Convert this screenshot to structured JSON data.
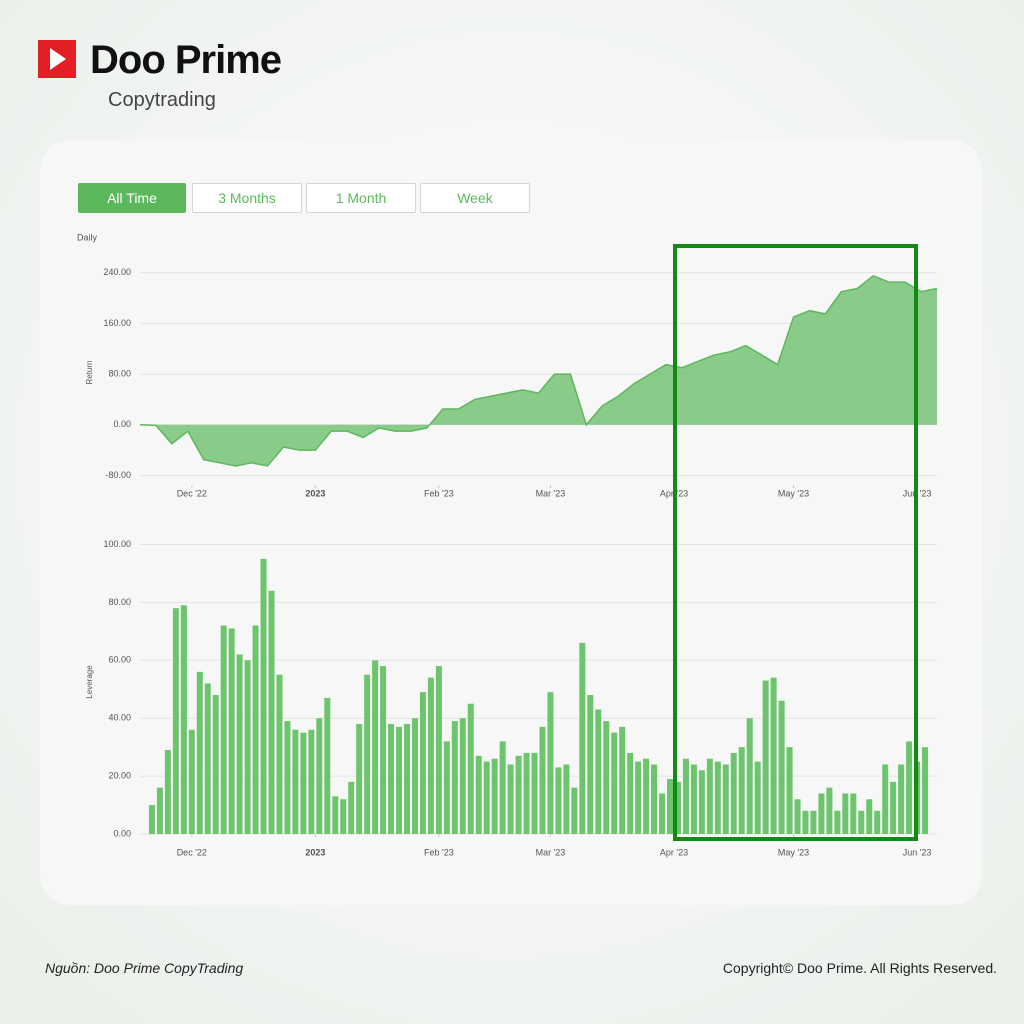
{
  "header": {
    "brand": "Doo Prime",
    "product": "Copytrading"
  },
  "tabs": [
    "All Time",
    "3 Months",
    "1 Month",
    "Week"
  ],
  "chart_data": [
    {
      "type": "area",
      "title": "Daily",
      "y_label": "Return",
      "color": "#5cb85c",
      "x": [
        0,
        4,
        8,
        12,
        16,
        20,
        24,
        28,
        32,
        36,
        40,
        44,
        48,
        52,
        56,
        60,
        64,
        68,
        72,
        76,
        80,
        84,
        88,
        92,
        96,
        100,
        104,
        108,
        112,
        116,
        120,
        124,
        128,
        132,
        136,
        140,
        144,
        148,
        152,
        156,
        160,
        164,
        168,
        172,
        176,
        180,
        184,
        188,
        192,
        196,
        200
      ],
      "values": [
        0,
        -1,
        -30,
        -10,
        -55,
        -60,
        -65,
        -60,
        -65,
        -35,
        -40,
        -40,
        -10,
        -10,
        -20,
        -5,
        -10,
        -10,
        -5,
        25,
        25,
        40,
        45,
        50,
        55,
        50,
        80,
        80,
        0,
        30,
        45,
        65,
        80,
        95,
        90,
        100,
        110,
        115,
        125,
        110,
        95,
        170,
        180,
        175,
        210,
        215,
        235,
        225,
        225,
        210,
        215
      ],
      "xlim": [
        0,
        200
      ],
      "xticks": [
        {
          "value": 13,
          "label": "Dec '22"
        },
        {
          "value": 44,
          "label": "2023"
        },
        {
          "value": 75,
          "label": "Feb '23"
        },
        {
          "value": 103,
          "label": "Mar '23"
        },
        {
          "value": 134,
          "label": "Apr '23"
        },
        {
          "value": 164,
          "label": "May '23"
        },
        {
          "value": 195,
          "label": "Jun '23"
        }
      ],
      "ylim": [
        -95,
        260
      ],
      "yticks": [
        {
          "value": -80,
          "label": "-80.00"
        },
        {
          "value": 0,
          "label": "0.00"
        },
        {
          "value": 80,
          "label": "80.00"
        },
        {
          "value": 160,
          "label": "160.00"
        },
        {
          "value": 240,
          "label": "240.00"
        }
      ],
      "grid": true
    },
    {
      "type": "bar",
      "y_label": "Leverage",
      "color": "#6cc46c",
      "x": [
        3,
        5,
        7,
        9,
        11,
        13,
        15,
        17,
        19,
        21,
        23,
        25,
        27,
        29,
        31,
        33,
        35,
        37,
        39,
        41,
        43,
        45,
        47,
        49,
        51,
        53,
        55,
        57,
        59,
        61,
        63,
        65,
        67,
        69,
        71,
        73,
        75,
        77,
        79,
        81,
        83,
        85,
        87,
        89,
        91,
        93,
        95,
        97,
        99,
        101,
        103,
        105,
        107,
        109,
        111,
        113,
        115,
        117,
        119,
        121,
        123,
        125,
        127,
        129,
        131,
        133,
        135,
        137,
        139,
        141,
        143,
        145,
        147,
        149,
        151,
        153,
        155,
        157,
        159,
        161,
        163,
        165,
        167,
        169,
        171,
        173,
        175,
        177,
        179,
        181,
        183,
        185,
        187,
        189,
        191,
        193,
        195,
        197
      ],
      "values": [
        10,
        16,
        29,
        78,
        79,
        36,
        56,
        52,
        48,
        72,
        71,
        62,
        60,
        72,
        95,
        84,
        55,
        39,
        36,
        35,
        36,
        40,
        47,
        13,
        12,
        18,
        38,
        55,
        60,
        58,
        38,
        37,
        38,
        40,
        49,
        54,
        58,
        32,
        39,
        40,
        45,
        27,
        25,
        26,
        32,
        24,
        27,
        28,
        28,
        37,
        49,
        23,
        24,
        16,
        66,
        48,
        43,
        39,
        35,
        37,
        28,
        25,
        26,
        24,
        14,
        19,
        18,
        26,
        24,
        22,
        26,
        25,
        24,
        28,
        30,
        40,
        25,
        53,
        54,
        46,
        30,
        12,
        8,
        8,
        14,
        16,
        8,
        14,
        14,
        8,
        12,
        8,
        24,
        18,
        24,
        32,
        25,
        30
      ],
      "xlim": [
        0,
        200
      ],
      "xticks": [
        {
          "value": 13,
          "label": "Dec '22"
        },
        {
          "value": 44,
          "label": "2023"
        },
        {
          "value": 75,
          "label": "Feb '23"
        },
        {
          "value": 103,
          "label": "Mar '23"
        },
        {
          "value": 134,
          "label": "Apr '23"
        },
        {
          "value": 164,
          "label": "May '23"
        },
        {
          "value": 195,
          "label": "Jun '23"
        }
      ],
      "ylim": [
        0,
        105
      ],
      "yticks": [
        {
          "value": 0,
          "label": "0.00"
        },
        {
          "value": 20,
          "label": "20.00"
        },
        {
          "value": 40,
          "label": "40.00"
        },
        {
          "value": 60,
          "label": "60.00"
        },
        {
          "value": 80,
          "label": "80.00"
        },
        {
          "value": 100,
          "label": "100.00"
        }
      ],
      "grid": true
    }
  ],
  "footer": {
    "source": "Nguồn: Doo Prime CopyTrading",
    "copyright": "Copyright© Doo Prime. All Rights Reserved."
  }
}
